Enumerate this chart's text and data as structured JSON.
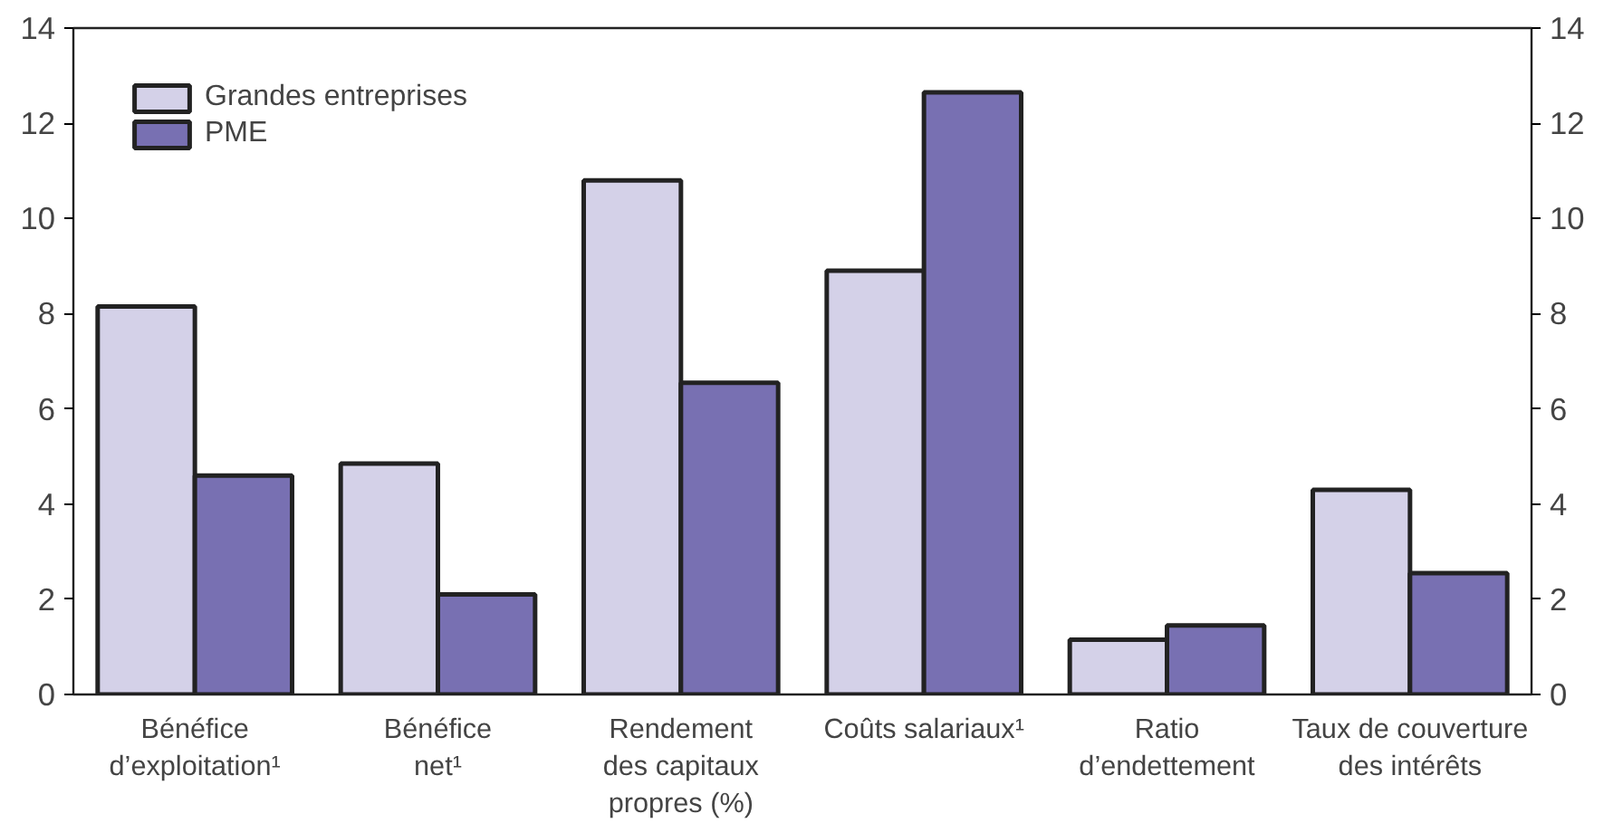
{
  "chart_data": {
    "type": "bar",
    "categories": [
      "Bénéfice\nd’exploitation¹",
      "Bénéfice\nnet¹",
      "Rendement\ndes capitaux\npropres (%)",
      "Coûts salariaux¹",
      "Ratio\nd’endettement",
      "Taux de couverture\ndes intérêts"
    ],
    "series": [
      {
        "name": "Grandes entreprises",
        "color": "#d4d1e8",
        "values": [
          8.15,
          4.85,
          10.8,
          8.9,
          1.15,
          4.3
        ]
      },
      {
        "name": "PME",
        "color": "#7870b2",
        "values": [
          4.6,
          2.1,
          6.55,
          12.65,
          1.45,
          2.55
        ]
      }
    ],
    "ylim": [
      0,
      14
    ],
    "yticks": [
      0,
      2,
      4,
      6,
      8,
      10,
      12,
      14
    ],
    "y2lim": [
      0,
      14
    ],
    "y2ticks": [
      0,
      2,
      4,
      6,
      8,
      10,
      12,
      14
    ],
    "grid": false,
    "legend": "top left"
  }
}
